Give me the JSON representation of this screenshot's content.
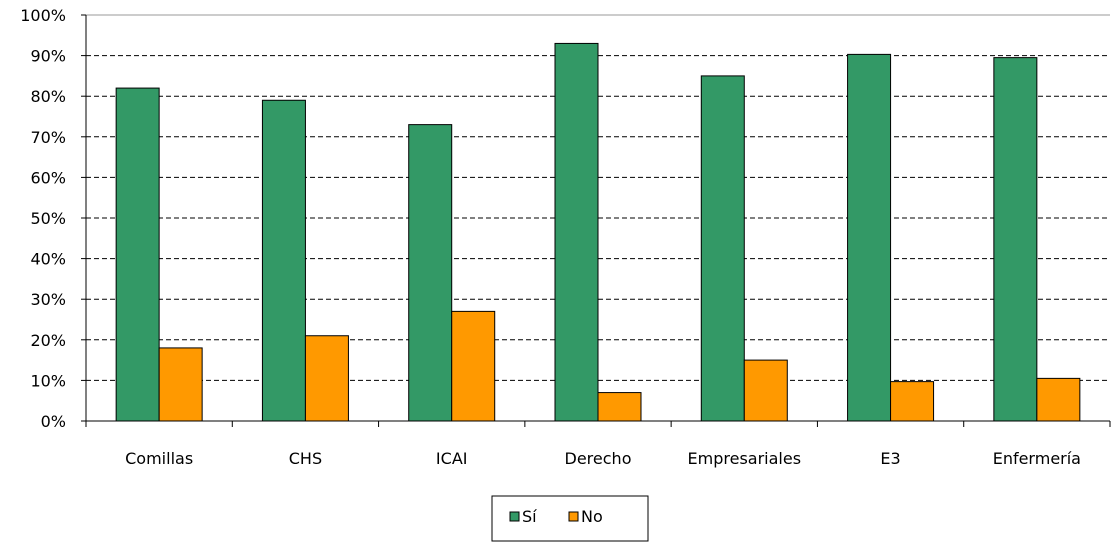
{
  "chart_data": {
    "type": "bar",
    "categories": [
      "Comillas",
      "CHS",
      "ICAI",
      "Derecho",
      "Empresariales",
      "E3",
      "Enfermería"
    ],
    "series": [
      {
        "name": "Sí",
        "color": "#339966",
        "values": [
          82,
          79,
          73,
          93,
          85,
          90.3,
          89.5
        ]
      },
      {
        "name": "No",
        "color": "#ff9900",
        "values": [
          18,
          21,
          27,
          7,
          15,
          9.7,
          10.5
        ]
      }
    ],
    "yticks": [
      "0%",
      "10%",
      "20%",
      "30%",
      "40%",
      "50%",
      "60%",
      "70%",
      "80%",
      "90%",
      "100%"
    ],
    "ylim": [
      0,
      100
    ],
    "grid": "dashed horizontal",
    "legend": "bottom-center"
  }
}
